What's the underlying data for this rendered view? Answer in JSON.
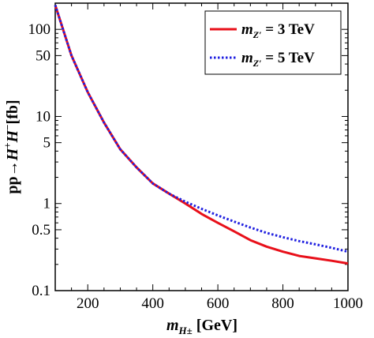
{
  "chart_data": {
    "type": "line",
    "xlabel": "m_{H±} [GeV]",
    "ylabel": "pp→H⁺H⁻[fb]",
    "xlim": [
      100,
      1000
    ],
    "ylim": [
      0.1,
      200
    ],
    "yscale": "log",
    "x_ticks": [
      200,
      400,
      600,
      800,
      1000
    ],
    "x_tick_labels": [
      "200",
      "400",
      "600",
      "800",
      "1000"
    ],
    "y_ticks": [
      0.1,
      0.5,
      1,
      5,
      10,
      50,
      100
    ],
    "y_tick_labels": [
      "0.1",
      "0.5",
      "1",
      "5",
      "10",
      "50",
      "100"
    ],
    "grid": false,
    "legend_position": "top-right",
    "series": [
      {
        "name": "m_Z' = 3 TeV",
        "color": "#e8101a",
        "style": "solid",
        "x": [
          100,
          150,
          200,
          250,
          300,
          350,
          400,
          450,
          500,
          550,
          600,
          650,
          700,
          750,
          800,
          850,
          900,
          950,
          1000
        ],
        "y": [
          190,
          50,
          19,
          8.5,
          4.2,
          2.6,
          1.7,
          1.3,
          1.0,
          0.76,
          0.6,
          0.48,
          0.38,
          0.32,
          0.28,
          0.25,
          0.235,
          0.22,
          0.205
        ]
      },
      {
        "name": "m_Z' = 5 TeV",
        "color": "#1f1fe0",
        "style": "dotted",
        "x": [
          100,
          150,
          200,
          250,
          300,
          350,
          400,
          450,
          500,
          550,
          600,
          650,
          700,
          750,
          800,
          850,
          900,
          950,
          1000
        ],
        "y": [
          190,
          50,
          19,
          8.5,
          4.2,
          2.6,
          1.7,
          1.3,
          1.05,
          0.87,
          0.73,
          0.62,
          0.53,
          0.46,
          0.41,
          0.37,
          0.34,
          0.31,
          0.28
        ]
      }
    ]
  }
}
